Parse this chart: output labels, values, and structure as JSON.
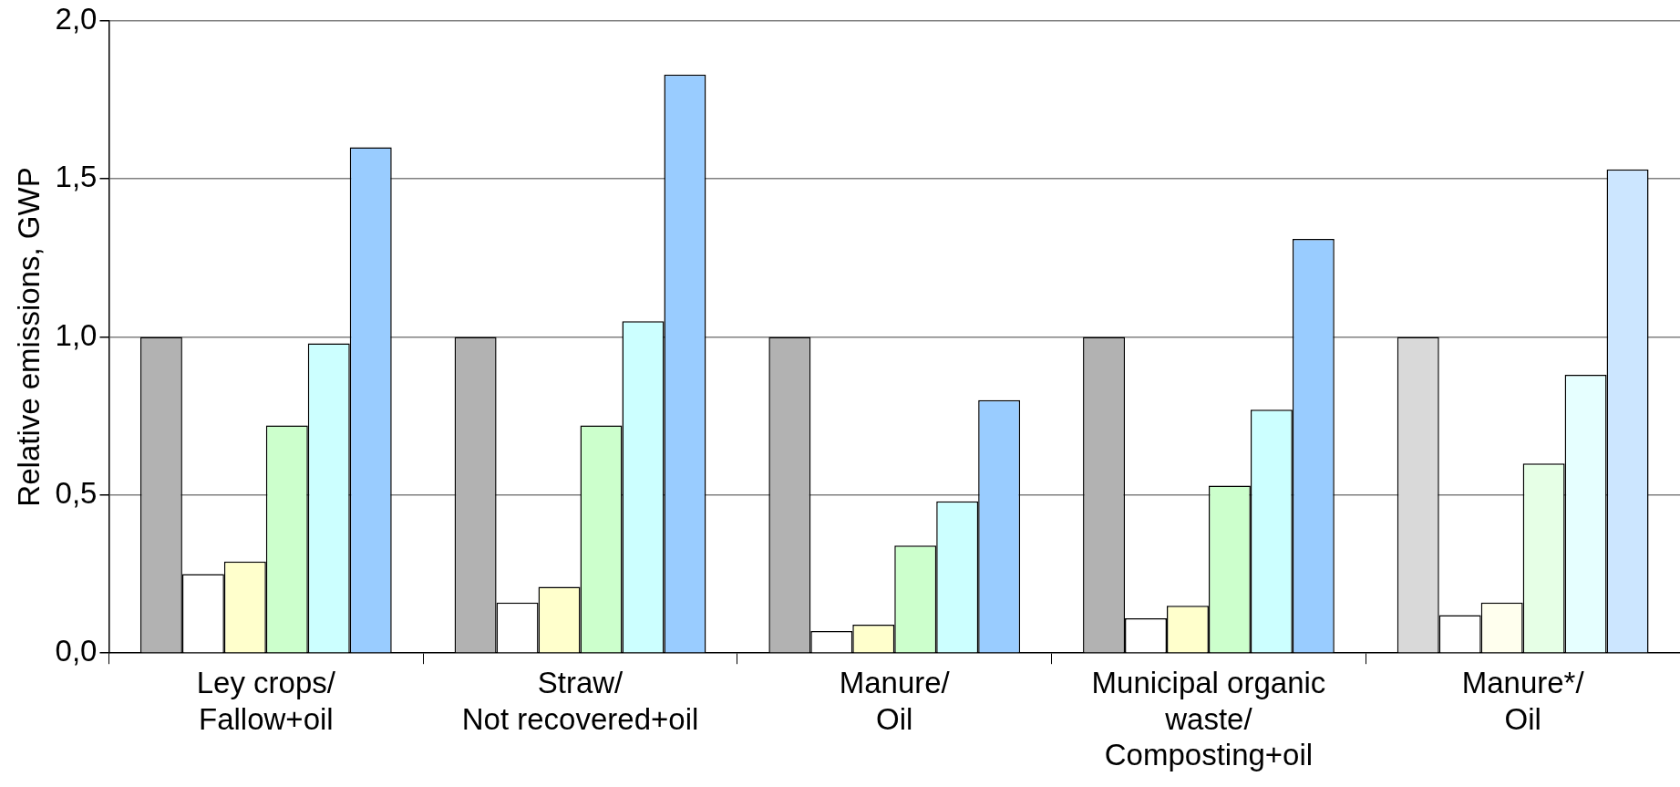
{
  "chart_data": {
    "type": "bar",
    "ylabel": "Relative emissions, GWP",
    "categories": [
      "Ley crops/\nFallow+oil",
      "Straw/\nNot recovered+oil",
      "Manure/\nOil",
      "Municipal organic\nwaste/\nComposting+oil",
      "Manure*/\nOil"
    ],
    "series": [
      {
        "colors": [
          "#b2b2b2",
          "#b2b2b2",
          "#b2b2b2",
          "#b2b2b2",
          "#d9d9d9"
        ],
        "values": [
          1.0,
          1.0,
          1.0,
          1.0,
          1.0
        ]
      },
      {
        "colors": [
          "#ffffff",
          "#ffffff",
          "#ffffff",
          "#ffffff",
          "#ffffff"
        ],
        "values": [
          0.25,
          0.16,
          0.07,
          0.11,
          0.12
        ]
      },
      {
        "colors": [
          "#ffffcc",
          "#ffffcc",
          "#ffffcc",
          "#ffffcc",
          "#ffffee"
        ],
        "values": [
          0.29,
          0.21,
          0.09,
          0.15,
          0.16
        ]
      },
      {
        "colors": [
          "#ccffcc",
          "#ccffcc",
          "#ccffcc",
          "#ccffcc",
          "#e6ffe6"
        ],
        "values": [
          0.72,
          0.72,
          0.34,
          0.53,
          0.6
        ]
      },
      {
        "colors": [
          "#ccffff",
          "#ccffff",
          "#ccffff",
          "#ccffff",
          "#e6ffff"
        ],
        "values": [
          0.98,
          1.05,
          0.48,
          0.77,
          0.88
        ]
      },
      {
        "colors": [
          "#99ccff",
          "#99ccff",
          "#99ccff",
          "#99ccff",
          "#cce6ff"
        ],
        "values": [
          1.6,
          1.83,
          0.8,
          1.31,
          1.53
        ]
      }
    ],
    "ylim": [
      0,
      2
    ],
    "yticks": [
      {
        "value": 0,
        "label": "0,0"
      },
      {
        "value": 0.5,
        "label": "0,5"
      },
      {
        "value": 1,
        "label": "1,0"
      },
      {
        "value": 1.5,
        "label": "1,5"
      },
      {
        "value": 2,
        "label": "2,0"
      }
    ],
    "grid": "y",
    "legend": false
  }
}
